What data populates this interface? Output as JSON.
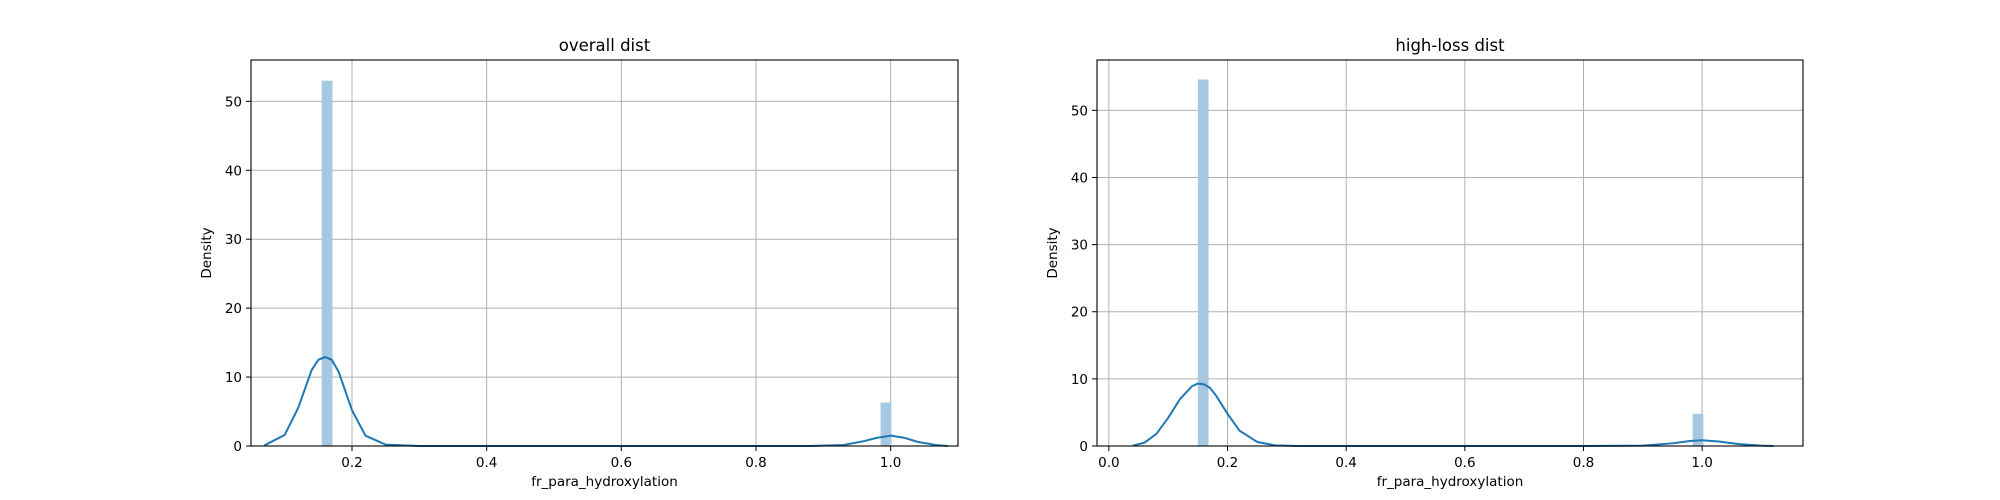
{
  "chart_data": [
    {
      "type": "bar",
      "title": "overall dist",
      "xlabel": "fr_para_hydroxylation",
      "ylabel": "Density",
      "xlim": [
        0.05,
        1.1
      ],
      "ylim": [
        0,
        56
      ],
      "xticks": [
        0.2,
        0.4,
        0.6,
        0.8,
        1.0
      ],
      "xtick_labels": [
        "0.2",
        "0.4",
        "0.6",
        "0.8",
        "1.0"
      ],
      "yticks": [
        0,
        10,
        20,
        30,
        40,
        50
      ],
      "ytick_labels": [
        "0",
        "10",
        "20",
        "30",
        "40",
        "50"
      ],
      "grid": true,
      "bar_color": "#a6c8e0",
      "kde_color": "#1f77b4",
      "bars": [
        {
          "x0": 0.155,
          "x1": 0.171,
          "value": 53.0
        },
        {
          "x0": 0.985,
          "x1": 1.001,
          "value": 6.3
        }
      ],
      "kde": {
        "x": [
          0.07,
          0.1,
          0.12,
          0.14,
          0.15,
          0.16,
          0.17,
          0.18,
          0.2,
          0.22,
          0.25,
          0.3,
          0.4,
          0.5,
          0.6,
          0.7,
          0.8,
          0.88,
          0.93,
          0.96,
          0.98,
          1.0,
          1.02,
          1.04,
          1.07,
          1.085
        ],
        "y": [
          0.1,
          1.6,
          5.5,
          11.0,
          12.5,
          12.9,
          12.5,
          10.8,
          5.2,
          1.5,
          0.2,
          0.0,
          0.0,
          0.0,
          0.0,
          0.0,
          0.0,
          0.0,
          0.15,
          0.7,
          1.2,
          1.5,
          1.2,
          0.6,
          0.1,
          0.0
        ]
      }
    },
    {
      "type": "bar",
      "title": "high-loss dist",
      "xlabel": "fr_para_hydroxylation",
      "ylabel": "Density",
      "xlim": [
        -0.02,
        1.17
      ],
      "ylim": [
        0,
        57.5
      ],
      "xticks": [
        0.0,
        0.2,
        0.4,
        0.6,
        0.8,
        1.0
      ],
      "xtick_labels": [
        "0.0",
        "0.2",
        "0.4",
        "0.6",
        "0.8",
        "1.0"
      ],
      "yticks": [
        0,
        10,
        20,
        30,
        40,
        50
      ],
      "ytick_labels": [
        "0",
        "10",
        "20",
        "30",
        "40",
        "50"
      ],
      "grid": true,
      "bar_color": "#a6c8e0",
      "kde_color": "#1f77b4",
      "bars": [
        {
          "x0": 0.15,
          "x1": 0.168,
          "value": 54.6
        },
        {
          "x0": 0.984,
          "x1": 1.002,
          "value": 4.8
        }
      ],
      "kde": {
        "x": [
          0.04,
          0.06,
          0.08,
          0.1,
          0.12,
          0.14,
          0.15,
          0.16,
          0.17,
          0.18,
          0.2,
          0.22,
          0.25,
          0.28,
          0.32,
          0.4,
          0.5,
          0.6,
          0.7,
          0.8,
          0.9,
          0.95,
          0.98,
          1.0,
          1.03,
          1.06,
          1.1,
          1.12
        ],
        "y": [
          0.05,
          0.5,
          1.8,
          4.2,
          7.0,
          8.9,
          9.3,
          9.2,
          8.7,
          7.6,
          4.8,
          2.3,
          0.6,
          0.1,
          0.0,
          0.0,
          0.0,
          0.0,
          0.0,
          0.0,
          0.05,
          0.4,
          0.75,
          0.85,
          0.65,
          0.3,
          0.05,
          0.0
        ]
      }
    }
  ]
}
